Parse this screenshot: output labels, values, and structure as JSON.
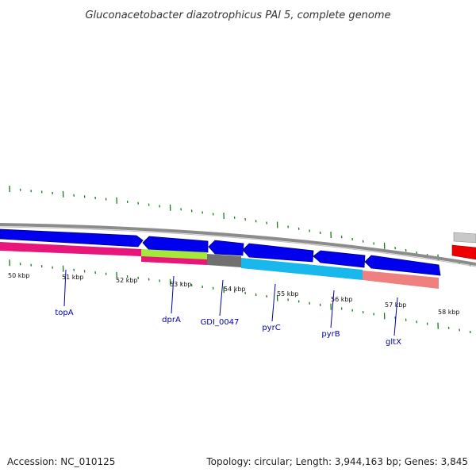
{
  "header": {
    "title": "Gluconacetobacter diazotrophicus PAl 5, complete genome"
  },
  "footer": {
    "accession": "Accession: NC_010125",
    "stats": "Topology: circular; Length: 3,944,163 bp; Genes: 3,845"
  },
  "map": {
    "kbp_labels": [
      "50 kbp",
      "51 kbp",
      "52 kbp",
      "53 kbp",
      "54 kbp",
      "55 kbp",
      "56 kbp",
      "57 kbp",
      "58 kbp"
    ],
    "genes": [
      {
        "name": "topA",
        "color": "#0000ee"
      },
      {
        "name": "dprA",
        "color": "#0000ee"
      },
      {
        "name": "GDI_0047",
        "color": "#0000ee"
      },
      {
        "name": "pyrC",
        "color": "#0000ee"
      },
      {
        "name": "pyrB",
        "color": "#0000ee"
      },
      {
        "name": "gltX",
        "color": "#0000ee"
      }
    ],
    "colors": {
      "backbone": "#8c8c8c",
      "forward_genes": "#0000ee",
      "cog_magenta": "#e8157a",
      "cog_lime": "#a6e83a",
      "cog_gray": "#707070",
      "cog_cyan": "#18b8ec",
      "cog_salmon": "#ee8080",
      "cog_red": "#ee0000",
      "tick_green": "#1a7a1a"
    }
  }
}
